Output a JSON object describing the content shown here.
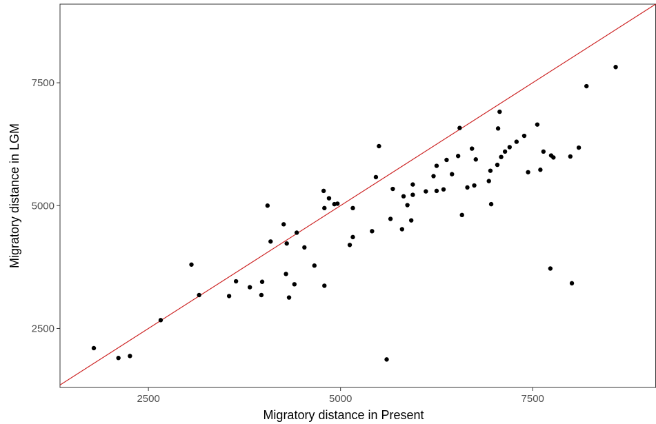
{
  "chart_data": {
    "type": "scatter",
    "title": "",
    "xlabel": "Migratory distance in Present",
    "ylabel": "Migratory distance in LGM",
    "xlim": [
      1350,
      9100
    ],
    "ylim": [
      1300,
      9100
    ],
    "x_ticks": [
      2500,
      5000,
      7500
    ],
    "y_ticks": [
      2500,
      5000,
      7500
    ],
    "x_tick_labels": [
      "2500",
      "5000",
      "7500"
    ],
    "y_tick_labels": [
      "2500",
      "5000",
      "7500"
    ],
    "grid": false,
    "legend": "none",
    "point_color": "#000000",
    "reference_line": {
      "type": "identity",
      "slope": 1,
      "intercept": 0,
      "color": "#cc2222"
    },
    "points": [
      [
        1790,
        2100
      ],
      [
        2110,
        1900
      ],
      [
        2260,
        1940
      ],
      [
        2660,
        2670
      ],
      [
        3060,
        3800
      ],
      [
        3160,
        3180
      ],
      [
        3550,
        3160
      ],
      [
        3640,
        3460
      ],
      [
        3820,
        3340
      ],
      [
        3970,
        3180
      ],
      [
        3980,
        3450
      ],
      [
        4050,
        5000
      ],
      [
        4090,
        4270
      ],
      [
        4260,
        4620
      ],
      [
        4290,
        3610
      ],
      [
        4300,
        4230
      ],
      [
        4330,
        3130
      ],
      [
        4400,
        3400
      ],
      [
        4430,
        4450
      ],
      [
        4530,
        4150
      ],
      [
        4660,
        3780
      ],
      [
        4780,
        5300
      ],
      [
        4790,
        3370
      ],
      [
        4790,
        4950
      ],
      [
        4850,
        5150
      ],
      [
        4920,
        5030
      ],
      [
        4960,
        5040
      ],
      [
        5120,
        4200
      ],
      [
        5160,
        4950
      ],
      [
        5160,
        4360
      ],
      [
        5410,
        4480
      ],
      [
        5460,
        5580
      ],
      [
        5500,
        6210
      ],
      [
        5600,
        1870
      ],
      [
        5650,
        4730
      ],
      [
        5680,
        5340
      ],
      [
        5800,
        4520
      ],
      [
        5820,
        5190
      ],
      [
        5870,
        5010
      ],
      [
        5920,
        4700
      ],
      [
        5940,
        5220
      ],
      [
        5940,
        5430
      ],
      [
        6110,
        5290
      ],
      [
        6210,
        5600
      ],
      [
        6250,
        5300
      ],
      [
        6250,
        5810
      ],
      [
        6340,
        5330
      ],
      [
        6380,
        5930
      ],
      [
        6450,
        5640
      ],
      [
        6530,
        6010
      ],
      [
        6550,
        6580
      ],
      [
        6580,
        4810
      ],
      [
        6650,
        5370
      ],
      [
        6710,
        6160
      ],
      [
        6740,
        5410
      ],
      [
        6760,
        5940
      ],
      [
        6930,
        5500
      ],
      [
        6950,
        5710
      ],
      [
        6960,
        5030
      ],
      [
        7040,
        5830
      ],
      [
        7050,
        6570
      ],
      [
        7070,
        6910
      ],
      [
        7090,
        5990
      ],
      [
        7140,
        6100
      ],
      [
        7200,
        6190
      ],
      [
        7290,
        6300
      ],
      [
        7390,
        6420
      ],
      [
        7440,
        5680
      ],
      [
        7560,
        6650
      ],
      [
        7600,
        5730
      ],
      [
        7640,
        6100
      ],
      [
        7730,
        3720
      ],
      [
        7740,
        6020
      ],
      [
        7770,
        5980
      ],
      [
        7990,
        6000
      ],
      [
        8010,
        3420
      ],
      [
        8100,
        6180
      ],
      [
        8200,
        7430
      ],
      [
        8580,
        7820
      ]
    ]
  }
}
